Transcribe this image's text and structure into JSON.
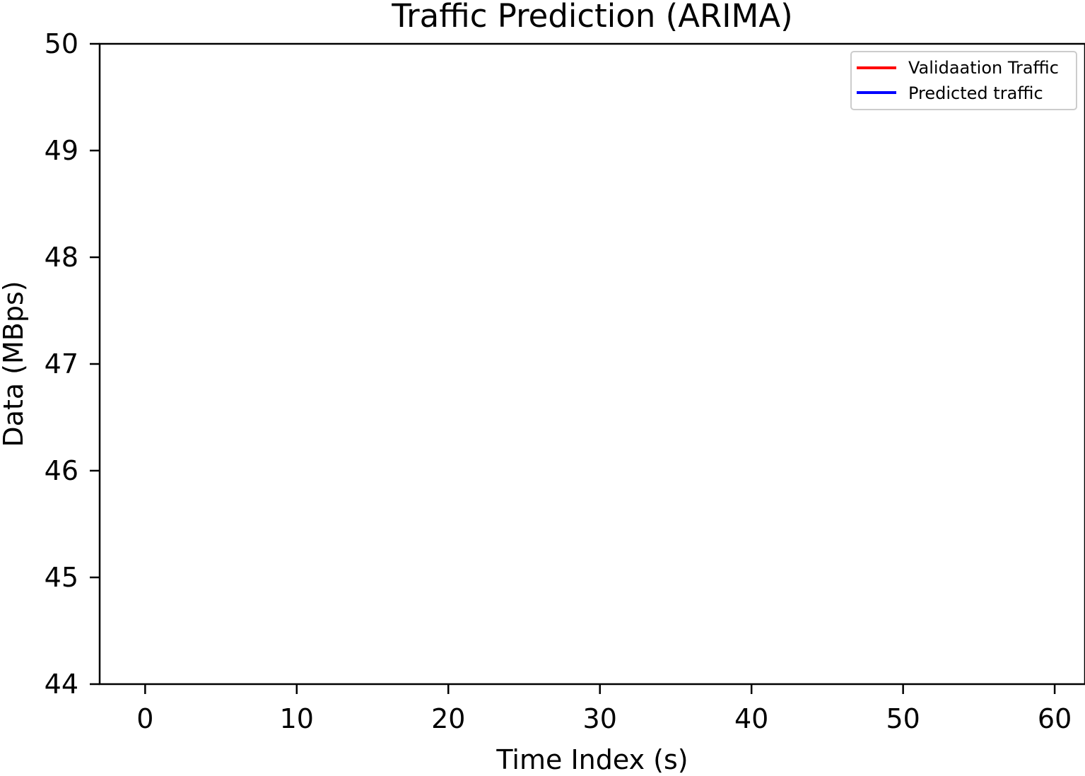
{
  "chart_data": {
    "type": "line",
    "title": "Traffic Prediction (ARIMA)",
    "xlabel": "Time Index (s)",
    "ylabel": "Data (MBps)",
    "xlim": [
      -3,
      62
    ],
    "ylim": [
      44,
      50
    ],
    "xticks": [
      0,
      10,
      20,
      30,
      40,
      50,
      60
    ],
    "yticks": [
      44,
      45,
      46,
      47,
      48,
      49,
      50
    ],
    "grid": false,
    "legend_position": "top-right",
    "series": [
      {
        "name": "Validaation Traffic",
        "color": "#ff0000",
        "x": [],
        "y": []
      },
      {
        "name": "Predicted traffic",
        "color": "#0000ff",
        "x": [],
        "y": []
      }
    ]
  }
}
